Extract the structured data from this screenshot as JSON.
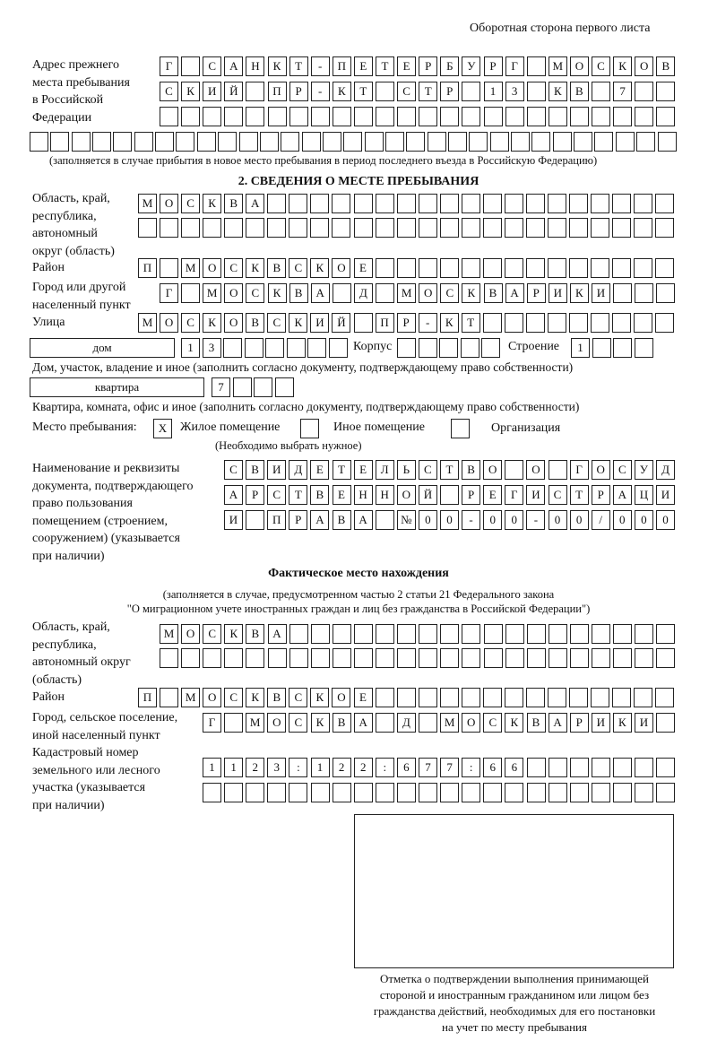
{
  "header": {
    "page_side": "Оборотная сторона первого листа"
  },
  "previous_address": {
    "label": "Адрес прежнего\nместа пребывания\nв Российской\nФедерации",
    "rows": [
      [
        "Г",
        "",
        "С",
        "А",
        "Н",
        "К",
        "Т",
        "-",
        "П",
        "Е",
        "Т",
        "Е",
        "Р",
        "Б",
        "У",
        "Р",
        "Г",
        "",
        "М",
        "О",
        "С",
        "К",
        "О",
        "В"
      ],
      [
        "С",
        "К",
        "И",
        "Й",
        "",
        "П",
        "Р",
        "-",
        "К",
        "Т",
        "",
        "С",
        "Т",
        "Р",
        "",
        "1",
        "3",
        "",
        "К",
        "В",
        "",
        "7",
        "",
        ""
      ],
      [
        "",
        "",
        "",
        "",
        "",
        "",
        "",
        "",
        "",
        "",
        "",
        "",
        "",
        "",
        "",
        "",
        "",
        "",
        "",
        "",
        "",
        "",
        "",
        ""
      ],
      [
        "",
        "",
        "",
        "",
        "",
        "",
        "",
        "",
        "",
        "",
        "",
        "",
        "",
        "",
        "",
        "",
        "",
        "",
        "",
        "",
        "",
        "",
        "",
        "",
        "",
        "",
        "",
        "",
        "",
        "",
        ""
      ]
    ],
    "note": "(заполняется в случае прибытия в новое место пребывания в период последнего въезда в Российскую Федерацию)"
  },
  "section2": {
    "title": "2. СВЕДЕНИЯ О МЕСТЕ ПРЕБЫВАНИЯ",
    "region_label": "Область, край,\nреспублика,\nавтономный\nокруг (область)",
    "region_rows": [
      [
        "М",
        "О",
        "С",
        "К",
        "В",
        "А",
        "",
        "",
        "",
        "",
        "",
        "",
        "",
        "",
        "",
        "",
        "",
        "",
        "",
        "",
        "",
        "",
        "",
        "",
        ""
      ],
      [
        "",
        "",
        "",
        "",
        "",
        "",
        "",
        "",
        "",
        "",
        "",
        "",
        "",
        "",
        "",
        "",
        "",
        "",
        "",
        "",
        "",
        "",
        "",
        "",
        ""
      ]
    ],
    "district_label": "Район",
    "district_row": [
      "П",
      "",
      "М",
      "О",
      "С",
      "К",
      "В",
      "С",
      "К",
      "О",
      "Е",
      "",
      "",
      "",
      "",
      "",
      "",
      "",
      "",
      "",
      "",
      "",
      "",
      "",
      ""
    ],
    "city_label": "Город или другой\nнаселенный пункт",
    "city_row": [
      "Г",
      "",
      "М",
      "О",
      "С",
      "К",
      "В",
      "А",
      "",
      "Д",
      "",
      "М",
      "О",
      "С",
      "К",
      "В",
      "А",
      "Р",
      "И",
      "К",
      "И",
      "",
      "",
      ""
    ],
    "street_label": "Улица",
    "street_row": [
      "М",
      "О",
      "С",
      "К",
      "О",
      "В",
      "С",
      "К",
      "И",
      "Й",
      "",
      "П",
      "Р",
      "-",
      "К",
      "Т",
      "",
      "",
      "",
      "",
      "",
      "",
      "",
      "",
      ""
    ],
    "house_type": "дом",
    "house_cells": [
      "1",
      "3",
      "",
      "",
      "",
      "",
      "",
      ""
    ],
    "building_label": "Корпус",
    "building_cells": [
      "",
      "",
      "",
      "",
      ""
    ],
    "structure_label": "Строение",
    "structure_cells": [
      "1",
      "",
      "",
      ""
    ],
    "house_note": "Дом, участок, владение и иное (заполнить согласно документу, подтверждающему право собственности)",
    "apartment_type": "квартира",
    "apartment_cells": [
      "7",
      "",
      "",
      ""
    ],
    "apartment_note": "Квартира, комната, офис и иное (заполнить согласно документу, подтверждающему право собственности)",
    "stay_place_label": "Место пребывания:",
    "stay_options": [
      {
        "label": "Жилое помещение",
        "mark": "X"
      },
      {
        "label": "Иное помещение",
        "mark": ""
      },
      {
        "label": "Организация",
        "mark": ""
      }
    ],
    "stay_note": "(Необходимо выбрать нужное)",
    "document_label": "Наименование и реквизиты\nдокумента, подтверждающего\nправо пользования\nпомещением (строением,\nсооружением) (указывается\nпри наличии)",
    "document_rows": [
      [
        "С",
        "В",
        "И",
        "Д",
        "Е",
        "Т",
        "Е",
        "Л",
        "Ь",
        "С",
        "Т",
        "В",
        "О",
        "",
        "О",
        "",
        "Г",
        "О",
        "С",
        "У",
        "Д"
      ],
      [
        "А",
        "Р",
        "С",
        "Т",
        "В",
        "Е",
        "Н",
        "Н",
        "О",
        "Й",
        "",
        "Р",
        "Е",
        "Г",
        "И",
        "С",
        "Т",
        "Р",
        "А",
        "Ц",
        "И"
      ],
      [
        "И",
        "",
        "П",
        "Р",
        "А",
        "В",
        "А",
        "",
        "№",
        "0",
        "0",
        "-",
        "0",
        "0",
        "-",
        "0",
        "0",
        "/",
        "0",
        "0",
        "0"
      ]
    ]
  },
  "actual_location": {
    "title": "Фактическое место нахождения",
    "note_line1": "(заполняется в случае, предусмотренном частью 2 статьи 21 Федерального закона",
    "note_line2": "\"О миграционном учете иностранных граждан и лиц без гражданства в Российской Федерации\")",
    "region_label": "Область, край,\nреспублика,\nавтономный округ\n(область)",
    "region_rows": [
      [
        "М",
        "О",
        "С",
        "К",
        "В",
        "А",
        "",
        "",
        "",
        "",
        "",
        "",
        "",
        "",
        "",
        "",
        "",
        "",
        "",
        "",
        "",
        "",
        "",
        ""
      ],
      [
        "",
        "",
        "",
        "",
        "",
        "",
        "",
        "",
        "",
        "",
        "",
        "",
        "",
        "",
        "",
        "",
        "",
        "",
        "",
        "",
        "",
        "",
        "",
        ""
      ]
    ],
    "district_label": "Район",
    "district_row": [
      "П",
      "",
      "М",
      "О",
      "С",
      "К",
      "В",
      "С",
      "К",
      "О",
      "Е",
      "",
      "",
      "",
      "",
      "",
      "",
      "",
      "",
      "",
      "",
      "",
      "",
      "",
      ""
    ],
    "city_label": "Город, сельское поселение,\nиной населенный пункт",
    "city_row": [
      "Г",
      "",
      "М",
      "О",
      "С",
      "К",
      "В",
      "А",
      "",
      "Д",
      "",
      "М",
      "О",
      "С",
      "К",
      "В",
      "А",
      "Р",
      "И",
      "К",
      "И",
      ""
    ],
    "cadastral_label": "Кадастровый номер\nземельного или лесного\nучастка (указывается\nпри наличии)",
    "cadastral_rows": [
      [
        "1",
        "1",
        "2",
        "3",
        ":",
        "1",
        "2",
        "2",
        ":",
        "6",
        "7",
        "7",
        ":",
        "6",
        "6",
        "",
        "",
        "",
        "",
        "",
        "",
        ""
      ],
      [
        "",
        "",
        "",
        "",
        "",
        "",
        "",
        "",
        "",
        "",
        "",
        "",
        "",
        "",
        "",
        "",
        "",
        "",
        "",
        "",
        "",
        ""
      ]
    ]
  },
  "confirmation": {
    "caption": "Отметка о подтверждении выполнения принимающей\nстороной и иностранным гражданином или лицом без\nгражданства действий, необходимых для его постановки\nна учет по месту пребывания"
  }
}
